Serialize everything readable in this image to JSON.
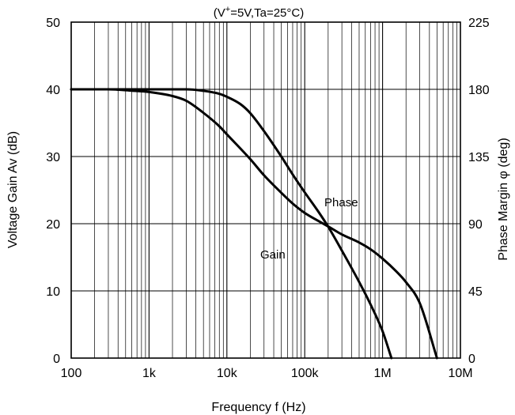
{
  "chart_data": {
    "type": "line",
    "subtitle_prefix": "(V",
    "subtitle_sup": "+",
    "subtitle_suffix": "=5V,Ta=25°C)",
    "xlabel": "Frequency f (Hz)",
    "ylabel": "Voltage Gain Av (dB)",
    "y2label": "Phase Margin φ (deg)",
    "xscale": "log",
    "xlim": [
      100,
      10000000
    ],
    "ylim": [
      0,
      50
    ],
    "y2lim": [
      0,
      225
    ],
    "grid": true,
    "x_ticks": [
      100,
      1000,
      10000,
      100000,
      1000000,
      10000000
    ],
    "x_tick_labels": [
      "100",
      "1k",
      "10k",
      "100k",
      "1M",
      "10M"
    ],
    "y_ticks": [
      0,
      10,
      20,
      30,
      40,
      50
    ],
    "y_tick_labels": [
      "0",
      "10",
      "20",
      "30",
      "40",
      "50"
    ],
    "y2_ticks": [
      0,
      45,
      90,
      135,
      180,
      225
    ],
    "y2_tick_labels": [
      "0",
      "45",
      "90",
      "135",
      "180",
      "225"
    ],
    "series": [
      {
        "name": "Gain",
        "axis": "left",
        "x": [
          100,
          300,
          600,
          1000,
          2000,
          3000,
          5000,
          8000,
          10000,
          20000,
          30000,
          50000,
          70000,
          100000,
          150000,
          200000,
          300000,
          500000,
          700000,
          1000000,
          1500000,
          2000000,
          3000000,
          5000000
        ],
        "values": [
          40,
          40,
          39.8,
          39.6,
          39,
          38.3,
          36.5,
          34.5,
          33.3,
          29.6,
          27.2,
          24.6,
          23,
          21.6,
          20.4,
          19.6,
          18.4,
          17.2,
          16.2,
          14.8,
          12.9,
          11.3,
          8.2,
          0
        ]
      },
      {
        "name": "Phase",
        "axis": "right",
        "x": [
          100,
          1000,
          3000,
          5000,
          8000,
          10000,
          15000,
          20000,
          30000,
          50000,
          70000,
          100000,
          150000,
          200000,
          300000,
          500000,
          700000,
          1000000,
          1300000
        ],
        "values": [
          180,
          180,
          180,
          179,
          177,
          175,
          170,
          164,
          152,
          135,
          123,
          111,
          98,
          88,
          72,
          51,
          36,
          18,
          0
        ]
      }
    ],
    "annotations": [
      {
        "text": "Phase",
        "series": "Phase"
      },
      {
        "text": "Gain",
        "series": "Gain"
      }
    ]
  }
}
